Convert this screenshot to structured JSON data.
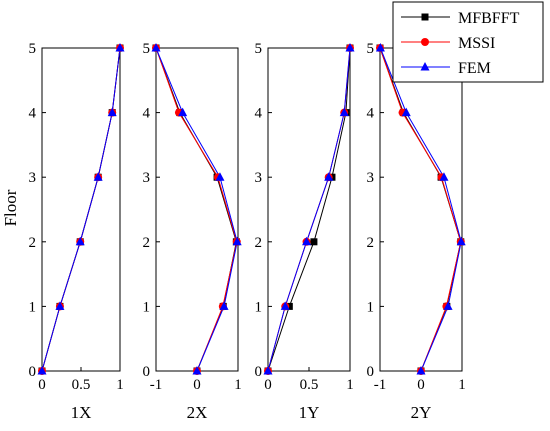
{
  "chart_data": {
    "type": "line",
    "ylabel": "Floor",
    "floors": [
      0,
      1,
      2,
      3,
      4,
      5
    ],
    "yticks": [
      "0",
      "1",
      "2",
      "3",
      "4",
      "5"
    ],
    "legend": {
      "placement": "top-right",
      "entries": [
        {
          "name": "MFBFFT",
          "color": "#000000",
          "marker": "square"
        },
        {
          "name": "MSSI",
          "color": "#ff0000",
          "marker": "circle"
        },
        {
          "name": "FEM",
          "color": "#0000ff",
          "marker": "triangle"
        }
      ]
    },
    "panels": [
      {
        "xlabel": "1X",
        "xlim": [
          0,
          1
        ],
        "xticks": [
          {
            "v": 0,
            "t": "0"
          },
          {
            "v": 0.5,
            "t": "0.5"
          },
          {
            "v": 1,
            "t": "1"
          }
        ],
        "series": [
          {
            "name": "MFBFFT",
            "values": [
              0,
              0.23,
              0.49,
              0.72,
              0.9,
              1.0
            ]
          },
          {
            "name": "MSSI",
            "values": [
              0,
              0.23,
              0.49,
              0.72,
              0.9,
              1.0
            ]
          },
          {
            "name": "FEM",
            "values": [
              0,
              0.23,
              0.49,
              0.72,
              0.9,
              1.0
            ]
          }
        ]
      },
      {
        "xlabel": "2X",
        "xlim": [
          -1,
          1
        ],
        "xticks": [
          {
            "v": -1,
            "t": "-1"
          },
          {
            "v": 0,
            "t": "0"
          },
          {
            "v": 1,
            "t": "1"
          }
        ],
        "series": [
          {
            "name": "MFBFFT",
            "values": [
              0,
              0.64,
              0.96,
              0.49,
              -0.42,
              -1.0
            ]
          },
          {
            "name": "MSSI",
            "values": [
              0,
              0.63,
              0.97,
              0.51,
              -0.44,
              -1.0
            ]
          },
          {
            "name": "FEM",
            "values": [
              0,
              0.66,
              0.98,
              0.56,
              -0.35,
              -1.0
            ]
          }
        ]
      },
      {
        "xlabel": "1Y",
        "xlim": [
          0,
          1
        ],
        "xticks": [
          {
            "v": 0,
            "t": "0"
          },
          {
            "v": 0.5,
            "t": "0.5"
          },
          {
            "v": 1,
            "t": "1"
          }
        ],
        "series": [
          {
            "name": "MFBFFT",
            "values": [
              0,
              0.26,
              0.56,
              0.78,
              0.95,
              1.0
            ]
          },
          {
            "name": "MSSI",
            "values": [
              0,
              0.21,
              0.47,
              0.74,
              0.93,
              1.0
            ]
          },
          {
            "name": "FEM",
            "values": [
              0,
              0.21,
              0.47,
              0.74,
              0.93,
              1.0
            ]
          }
        ]
      },
      {
        "xlabel": "2Y",
        "xlim": [
          -1,
          1
        ],
        "xticks": [
          {
            "v": -1,
            "t": "-1"
          },
          {
            "v": 0,
            "t": "0"
          },
          {
            "v": 1,
            "t": "1"
          }
        ],
        "series": [
          {
            "name": "MFBFFT",
            "values": [
              0,
              0.63,
              0.97,
              0.49,
              -0.43,
              -1.0
            ]
          },
          {
            "name": "MSSI",
            "values": [
              0,
              0.62,
              0.97,
              0.5,
              -0.45,
              -1.0
            ]
          },
          {
            "name": "FEM",
            "values": [
              0,
              0.66,
              0.98,
              0.56,
              -0.36,
              -0.99
            ]
          }
        ]
      }
    ]
  }
}
